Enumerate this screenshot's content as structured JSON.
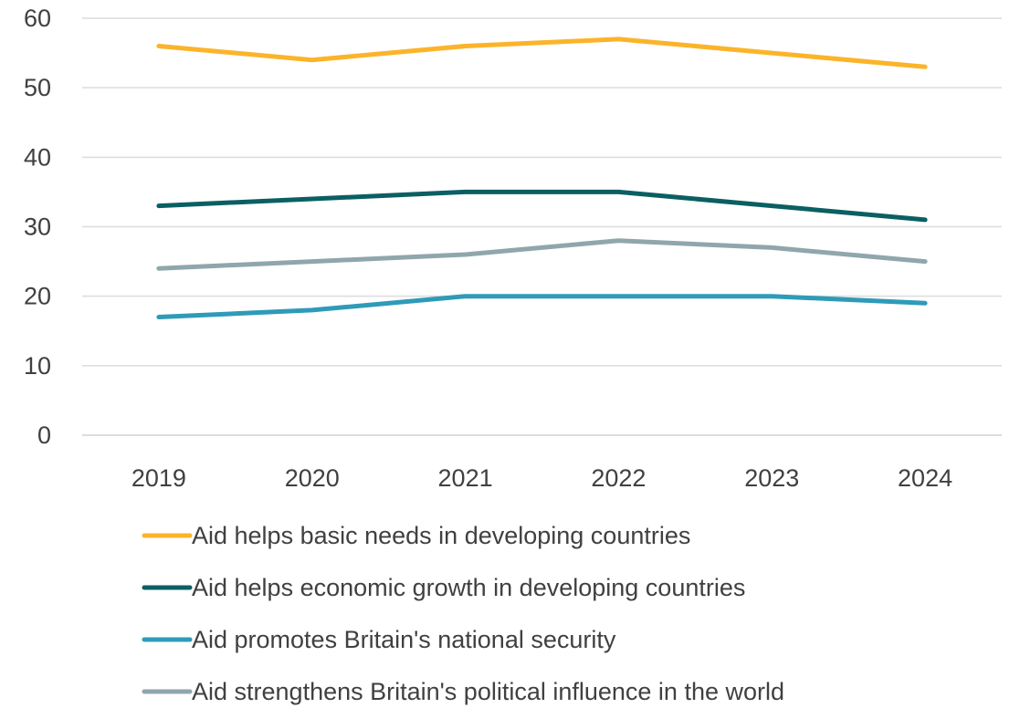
{
  "chart_data": {
    "type": "line",
    "title": "",
    "xlabel": "",
    "ylabel": "",
    "x": [
      "2019",
      "2020",
      "2021",
      "2022",
      "2023",
      "2024"
    ],
    "ylim": [
      0,
      60
    ],
    "yticks": [
      0,
      10,
      20,
      30,
      40,
      50,
      60
    ],
    "grid": true,
    "legend_position": "bottom",
    "series": [
      {
        "name": "Aid helps basic needs in developing countries",
        "color": "#FBB42A",
        "values": [
          56,
          54,
          56,
          57,
          55,
          53
        ]
      },
      {
        "name": "Aid helps economic growth in developing countries",
        "color": "#0B5F63",
        "values": [
          33,
          34,
          35,
          35,
          33,
          31
        ]
      },
      {
        "name": "Aid promotes Britain's national security",
        "color": "#2E9BB8",
        "values": [
          17,
          18,
          20,
          20,
          20,
          19
        ]
      },
      {
        "name": "Aid strengthens Britain's political influence in the world",
        "color": "#8FA6AC",
        "values": [
          24,
          25,
          26,
          28,
          27,
          25
        ]
      }
    ]
  }
}
